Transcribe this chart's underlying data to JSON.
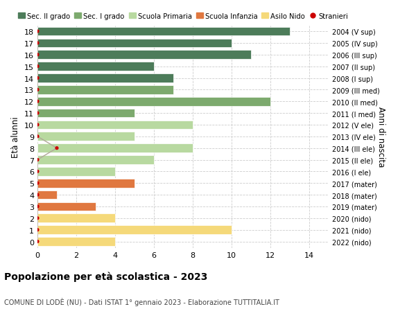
{
  "ages": [
    18,
    17,
    16,
    15,
    14,
    13,
    12,
    11,
    10,
    9,
    8,
    7,
    6,
    5,
    4,
    3,
    2,
    1,
    0
  ],
  "right_labels": [
    "2004 (V sup)",
    "2005 (IV sup)",
    "2006 (III sup)",
    "2007 (II sup)",
    "2008 (I sup)",
    "2009 (III med)",
    "2010 (II med)",
    "2011 (I med)",
    "2012 (V ele)",
    "2013 (IV ele)",
    "2014 (III ele)",
    "2015 (II ele)",
    "2016 (I ele)",
    "2017 (mater)",
    "2018 (mater)",
    "2019 (mater)",
    "2020 (nido)",
    "2021 (nido)",
    "2022 (nido)"
  ],
  "bar_values": [
    13,
    10,
    11,
    6,
    7,
    7,
    12,
    5,
    8,
    5,
    8,
    6,
    4,
    5,
    1,
    3,
    4,
    10,
    4
  ],
  "bar_colors": [
    "#4d7c5a",
    "#4d7c5a",
    "#4d7c5a",
    "#4d7c5a",
    "#4d7c5a",
    "#7daa6e",
    "#7daa6e",
    "#7daa6e",
    "#b8d9a0",
    "#b8d9a0",
    "#b8d9a0",
    "#b8d9a0",
    "#b8d9a0",
    "#e07840",
    "#e07840",
    "#e07840",
    "#f5d97a",
    "#f5d97a",
    "#f5d97a"
  ],
  "stranieri_values": [
    0,
    0,
    0,
    0,
    0,
    0,
    0,
    0,
    0,
    0,
    1,
    0,
    0,
    0,
    0,
    0,
    0,
    0,
    0
  ],
  "color_sec2": "#4d7c5a",
  "color_sec1": "#7daa6e",
  "color_primaria": "#b8d9a0",
  "color_infanzia": "#e07840",
  "color_nido": "#f5d97a",
  "color_stranieri": "#cc0000",
  "color_line": "#b0a898",
  "title": "Popolazione per età scolastica - 2023",
  "subtitle": "COMUNE DI LODÈ (NU) - Dati ISTAT 1° gennaio 2023 - Elaborazione TUTTITALIA.IT",
  "ylabel": "Età alunni",
  "right_ylabel": "Anni di nascita",
  "xlim": [
    0,
    15
  ],
  "xticks": [
    0,
    2,
    4,
    6,
    8,
    10,
    12,
    14
  ],
  "legend_labels": [
    "Sec. II grado",
    "Sec. I grado",
    "Scuola Primaria",
    "Scuola Infanzia",
    "Asilo Nido",
    "Stranieri"
  ],
  "bg_color": "#ffffff",
  "bar_height": 0.75
}
